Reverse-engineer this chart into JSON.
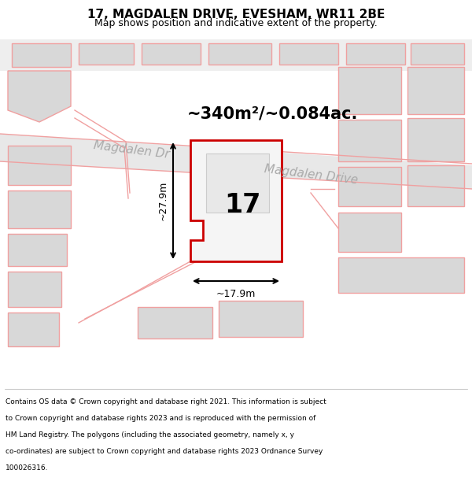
{
  "title": "17, MAGDALEN DRIVE, EVESHAM, WR11 2BE",
  "subtitle": "Map shows position and indicative extent of the property.",
  "footer_lines": [
    "Contains OS data © Crown copyright and database right 2021. This information is subject",
    "to Crown copyright and database rights 2023 and is reproduced with the permission of",
    "HM Land Registry. The polygons (including the associated geometry, namely x, y",
    "co-ordinates) are subject to Crown copyright and database rights 2023 Ordnance Survey",
    "100026316."
  ],
  "area_label": "~340m²/~0.084ac.",
  "width_label": "~17.9m",
  "height_label": "~27.9m",
  "number_label": "17",
  "road_label_1": "Magdalen Dr",
  "road_label_2": "Magdalen Drive",
  "neighbor_fill": "#d8d8d8",
  "neighbor_line": "#f0a0a0",
  "road_fill": "#e8e8e8",
  "plot_fill": "#f5f5f5",
  "plot_line": "#cc0000",
  "title_fontsize": 11,
  "subtitle_fontsize": 9,
  "footer_fontsize": 6.5
}
